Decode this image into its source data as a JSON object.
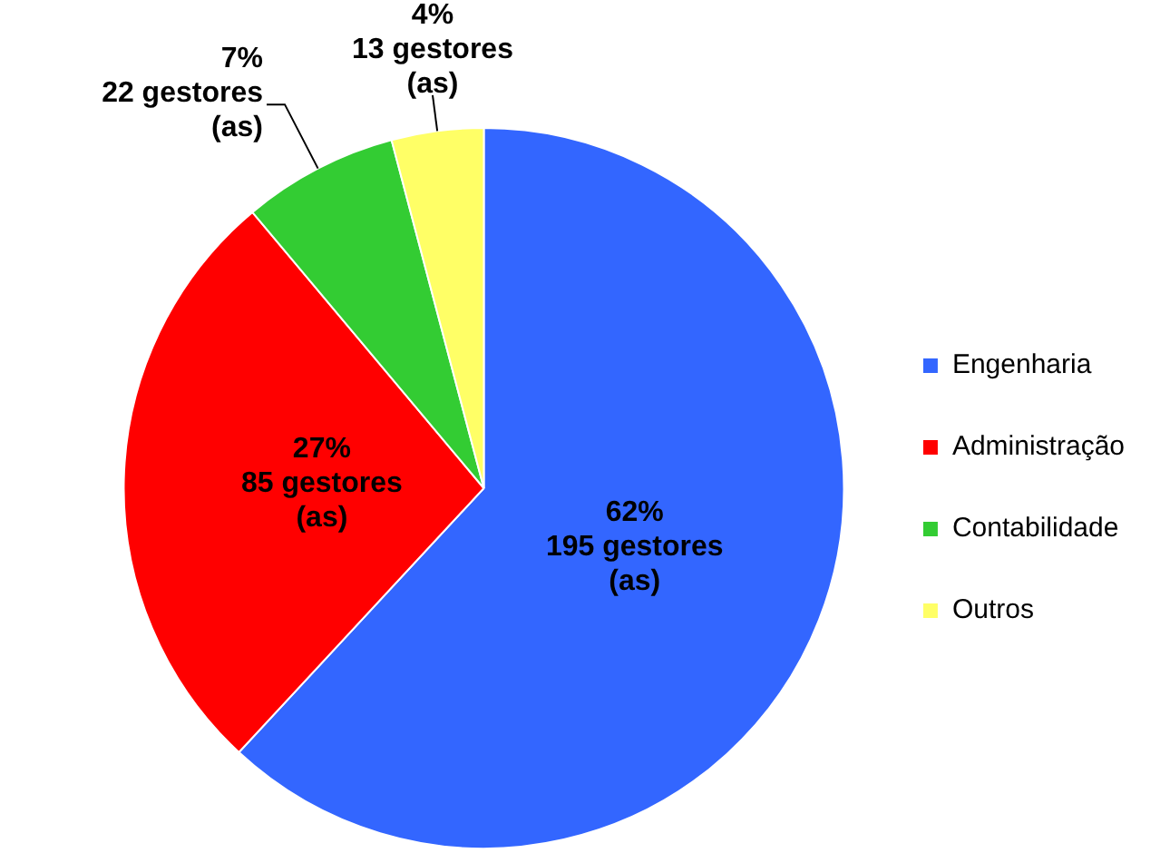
{
  "chart_data": {
    "type": "pie",
    "categories": [
      "Engenharia",
      "Administração",
      "Contabilidade",
      "Outros"
    ],
    "values": [
      195,
      85,
      22,
      13
    ],
    "colors": [
      "#3366ff",
      "#ff0000",
      "#33cc33",
      "#ffff66"
    ],
    "value_labels": [
      "62%\n195 gestores\n(as)",
      "27%\n85 gestores\n(as)",
      "7%\n22 gestores\n(as)",
      "4%\n13 gestores\n(as)"
    ],
    "legend": "right"
  }
}
